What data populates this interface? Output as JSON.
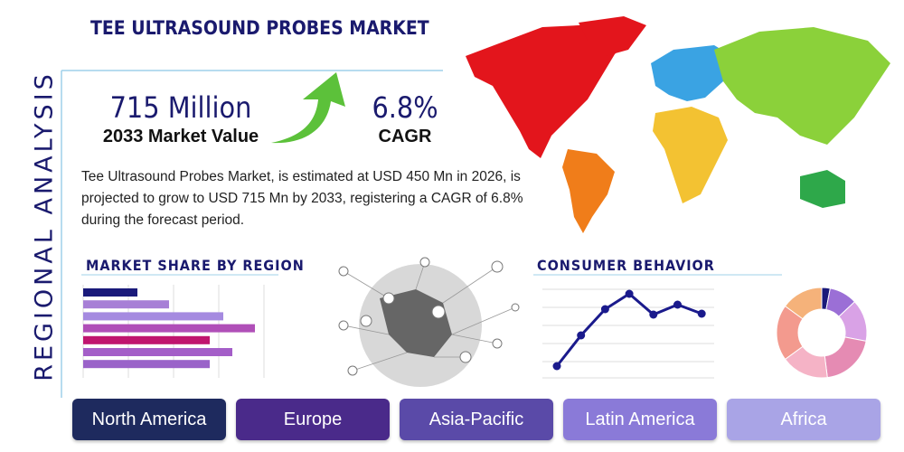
{
  "header": {
    "title": "TEE ULTRASOUND PROBES MARKET",
    "side_label": "REGIONAL ANALYSIS"
  },
  "stats": [
    {
      "value": "715 Million",
      "label": "2033 Market Value"
    },
    {
      "value": "6.8%",
      "label": "CAGR"
    }
  ],
  "description": "Tee Ultrasound Probes Market, is estimated at USD 450 Mn in 2026, is projected to grow to USD 715 Mn by 2033, registering a CAGR of 6.8% during the forecast period.",
  "market_share": {
    "type": "bar",
    "title": "MARKET SHARE BY REGION",
    "values": [
      1.2,
      1.9,
      3.1,
      3.8,
      2.8,
      3.3,
      2.8
    ],
    "colors": [
      "#1a1a7a",
      "#a77fd6",
      "#a58ae0",
      "#b04fb8",
      "#c0156f",
      "#a45ec8",
      "#9a63c9"
    ],
    "xlim": [
      0,
      4
    ]
  },
  "consumer_behavior": {
    "type": "line",
    "title": "CONSUMER BEHAVIOR",
    "values": [
      13,
      47,
      76,
      93,
      70,
      81,
      71
    ],
    "color": "#1a1a8c",
    "ylim": [
      0,
      100
    ]
  },
  "donut": {
    "type": "pie",
    "values": [
      3,
      10,
      15,
      20,
      17,
      20,
      15
    ],
    "colors": [
      "#1a1a7a",
      "#9b6fd6",
      "#d9a2e6",
      "#e58bb3",
      "#f5b3c6",
      "#f39a8e",
      "#f5b27a"
    ]
  },
  "regions": [
    "North America",
    "Europe",
    "Asia-Pacific",
    "Latin America",
    "Africa"
  ]
}
